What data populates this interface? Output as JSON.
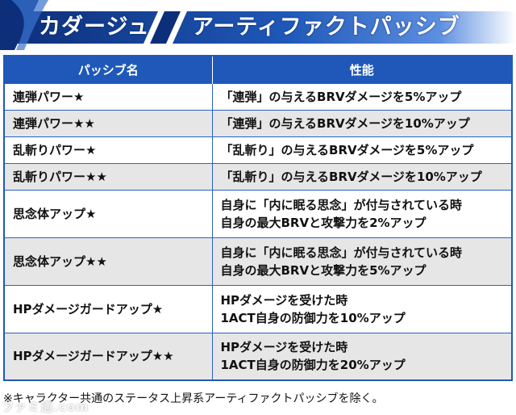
{
  "header": {
    "character": "カダージュ",
    "title": "アーティファクトパッシブ"
  },
  "table": {
    "columns": [
      "パッシブ名",
      "性能"
    ],
    "rows": [
      {
        "name": "連弾パワー★",
        "effect": [
          "「連弾」の与えるBRVダメージを5%アップ"
        ]
      },
      {
        "name": "連弾パワー★★",
        "effect": [
          "「連弾」の与えるBRVダメージを10%アップ"
        ]
      },
      {
        "name": "乱斬りパワー★",
        "effect": [
          "「乱斬り」の与えるBRVダメージを5%アップ"
        ]
      },
      {
        "name": "乱斬りパワー★★",
        "effect": [
          "「乱斬り」の与えるBRVダメージを10%アップ"
        ]
      },
      {
        "name": "思念体アップ★",
        "effect": [
          "自身に「内に眠る思念」が付与されている時",
          "自身の最大BRVと攻撃力を2%アップ"
        ]
      },
      {
        "name": "思念体アップ★★",
        "effect": [
          "自身に「内に眠る思念」が付与されている時",
          "自身の最大BRVと攻撃力を5%アップ"
        ]
      },
      {
        "name": "HPダメージガードアップ★",
        "effect": [
          "HPダメージを受けた時",
          "1ACT自身の防御力を10%アップ"
        ]
      },
      {
        "name": "HPダメージガードアップ★★",
        "effect": [
          "HPダメージを受けた時",
          "1ACT自身の防御力を20%アップ"
        ]
      }
    ]
  },
  "footnote": "※キャラクター共通のステータス上昇系アーティファクトパッシブを除く。",
  "watermark": "ファミ通.com",
  "colors": {
    "header_blue": "#1f58b8",
    "header_dark": "#0d2f7a",
    "row_alt": "#e6e6e6",
    "border": "#2a62c0"
  }
}
